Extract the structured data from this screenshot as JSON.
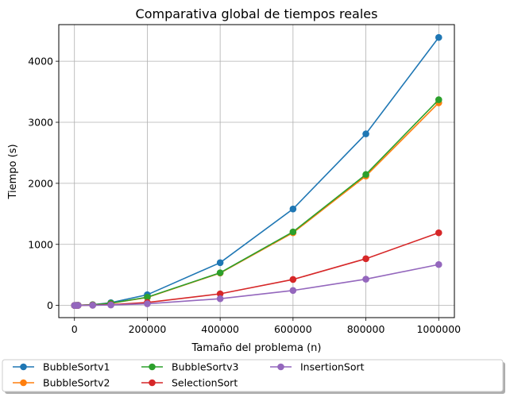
{
  "chart_data": {
    "type": "line",
    "title": "Comparativa global de tiempos reales",
    "xlabel": "Tamaño del problema (n)",
    "ylabel": "Tiempo (s)",
    "xlim": [
      -43000,
      1043000
    ],
    "ylim": [
      -200,
      4600
    ],
    "xticks": [
      0,
      200000,
      400000,
      600000,
      800000,
      1000000
    ],
    "xtick_labels": [
      "0",
      "200000",
      "400000",
      "600000",
      "800000",
      "1000000"
    ],
    "yticks": [
      0,
      1000,
      2000,
      3000,
      4000
    ],
    "ytick_labels": [
      "0",
      "1000",
      "2000",
      "3000",
      "4000"
    ],
    "grid": true,
    "legend_position": "bottom",
    "x": [
      100,
      1000,
      5000,
      10000,
      50000,
      100000,
      200000,
      400000,
      600000,
      800000,
      1000000
    ],
    "series": [
      {
        "name": "BubbleSortv1",
        "color": "#1f77b4",
        "values": [
          0,
          0,
          1,
          2,
          12,
          45,
          175,
          700,
          1580,
          2810,
          4390
        ]
      },
      {
        "name": "BubbleSortv2",
        "color": "#ff7f0e",
        "values": [
          0,
          0,
          1,
          2,
          10,
          35,
          130,
          530,
          1190,
          2120,
          3320
        ]
      },
      {
        "name": "BubbleSortv3",
        "color": "#2ca02c",
        "values": [
          0,
          0,
          1,
          2,
          10,
          36,
          135,
          535,
          1205,
          2145,
          3370
        ]
      },
      {
        "name": "SelectionSort",
        "color": "#d62728",
        "values": [
          0,
          0,
          0,
          1,
          4,
          12,
          48,
          190,
          425,
          765,
          1190
        ]
      },
      {
        "name": "InsertionSort",
        "color": "#9467bd",
        "values": [
          0,
          0,
          0,
          1,
          2,
          7,
          27,
          110,
          245,
          430,
          670
        ]
      }
    ]
  }
}
